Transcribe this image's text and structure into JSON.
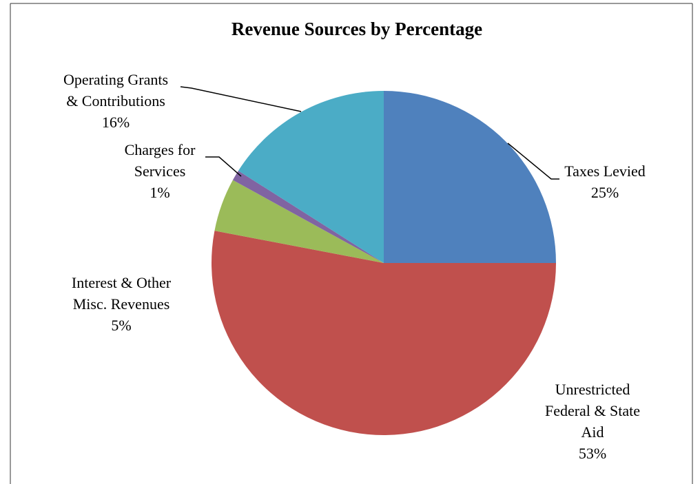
{
  "chart_data": {
    "type": "pie",
    "title": "Revenue Sources by Percentage",
    "categories": [
      "Taxes Levied",
      "Unrestricted\nFederal & State\nAid",
      "Interest & Other\nMisc. Revenues",
      "Charges for\nServices",
      "Operating Grants\n& Contributions"
    ],
    "values": [
      25,
      53,
      5,
      1,
      16
    ],
    "value_labels": [
      "25%",
      "53%",
      "5%",
      "1%",
      "16%"
    ],
    "colors": [
      "#4f81bd",
      "#c0504d",
      "#9bbb59",
      "#8064a2",
      "#4bacc6"
    ]
  }
}
